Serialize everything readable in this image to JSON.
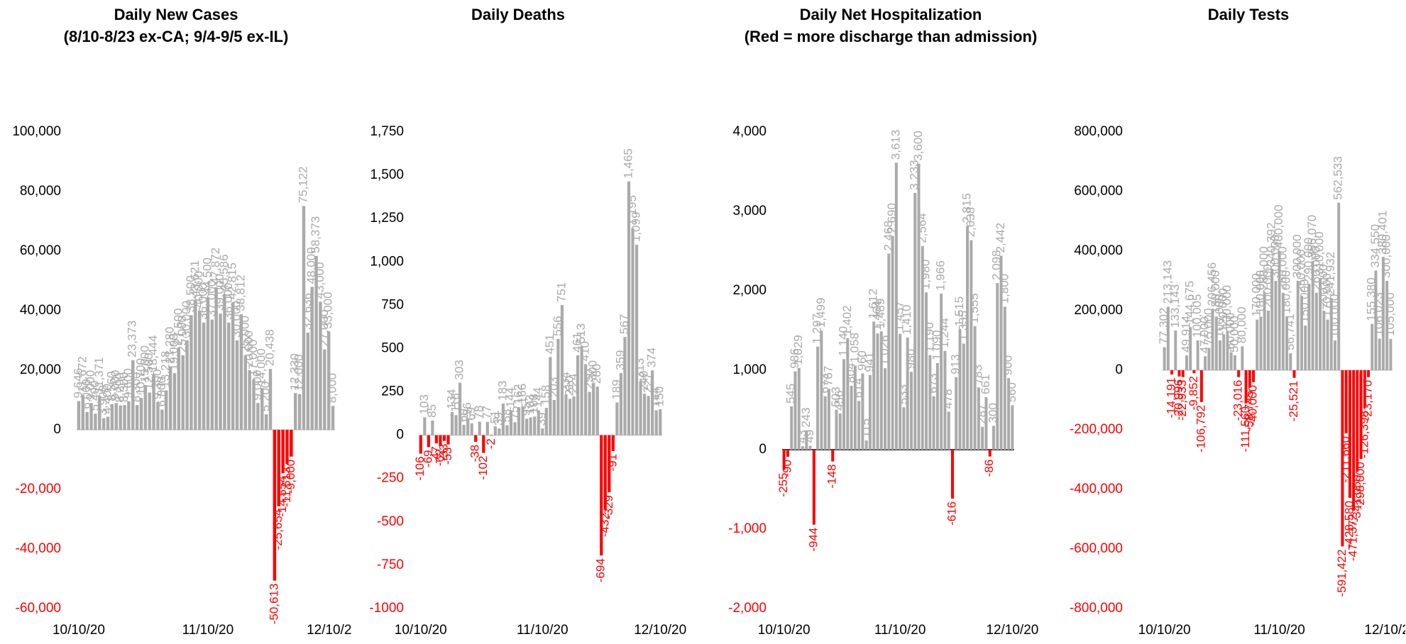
{
  "chart_data": [
    {
      "type": "bar",
      "title": "Daily New Cases",
      "subtitle": "(8/10-8/23 ex-CA; 9/4-9/5 ex-IL)",
      "categories": [
        "10/10/20",
        null,
        null,
        null,
        null,
        null,
        null,
        null,
        null,
        null,
        null,
        null,
        null,
        null,
        null,
        null,
        null,
        null,
        null,
        null,
        null,
        null,
        null,
        null,
        null,
        null,
        null,
        null,
        null,
        null,
        null,
        "11/10/20",
        null,
        null,
        null,
        null,
        null,
        null,
        null,
        null,
        null,
        null,
        null,
        null,
        null,
        null,
        null,
        null,
        null,
        null,
        null,
        null,
        null,
        null,
        null,
        null,
        null,
        null,
        null,
        null,
        null,
        "12/10/20"
      ],
      "values": [
        9646,
        11672,
        6000,
        9000,
        5400,
        11371,
        3900,
        4400,
        8560,
        9000,
        8200,
        8300,
        9600,
        23373,
        8300,
        10700,
        15000,
        12500,
        18444,
        9300,
        6800,
        13218,
        21280,
        19000,
        27500,
        25000,
        30000,
        38500,
        43621,
        40000,
        36000,
        44500,
        37000,
        47872,
        39000,
        45586,
        36000,
        42815,
        30000,
        38812,
        25000,
        20000,
        17000,
        9000,
        14000,
        5200,
        20438,
        -50613,
        -25654,
        -14554,
        -11513,
        -9000,
        12330,
        12000,
        75122,
        32636,
        48000,
        58373,
        43000,
        27000,
        33000,
        8000
      ],
      "value_labels": [
        "9,646",
        "11,672",
        "6,000",
        "9,000",
        "5,400",
        "11,371",
        "3,900",
        "4,400",
        "8,560",
        "9,000",
        "8,200",
        "8,300",
        "9,600",
        "23,373",
        "8,300",
        "10,700",
        "15,000",
        "12,500",
        "18,444",
        "9,300",
        "6,800",
        "13,218",
        "21,280",
        "19,000",
        "27,500",
        "25,000",
        "30,000",
        "38,500",
        "43,621",
        "40,000",
        "36,000",
        "44,500",
        "37,000",
        "47,872",
        "39,000",
        "45,586",
        "36,000",
        "42,815",
        "30,000",
        "38,812",
        "25,000",
        "20,000",
        "17,000",
        "9,000",
        "14,000",
        "5,200",
        "20,438",
        "-50,613",
        "-25,654",
        "-14,554",
        "-11,513",
        "-9,000",
        "12,330",
        "12,000",
        "75,122",
        "32,636",
        "48,000",
        "58,373",
        "43,000",
        "27,000",
        "33,000",
        "8,000"
      ],
      "color": "#aaaaaa",
      "negative_color": "#ff0000",
      "axis_color": "#cccccc",
      "ylim": [
        -60000,
        100000
      ],
      "yticks": [
        {
          "value": -60000,
          "label": "-60,000"
        },
        {
          "value": -40000,
          "label": "-40,000"
        },
        {
          "value": -20000,
          "label": "-20,000"
        },
        0,
        {
          "value": 20000,
          "label": "20,000"
        },
        {
          "value": 40000,
          "label": "40,000"
        },
        {
          "value": 60000,
          "label": "60,000"
        },
        {
          "value": 80000,
          "label": "80,000"
        },
        {
          "value": 100000,
          "label": "100,000"
        }
      ]
    },
    {
      "type": "bar",
      "title": "Daily Deaths",
      "categories": [
        "10/10/20",
        null,
        null,
        null,
        null,
        null,
        null,
        null,
        null,
        null,
        null,
        null,
        null,
        null,
        null,
        null,
        null,
        null,
        null,
        null,
        null,
        null,
        null,
        null,
        null,
        null,
        null,
        null,
        null,
        null,
        null,
        "11/10/20",
        null,
        null,
        null,
        null,
        null,
        null,
        null,
        null,
        null,
        null,
        null,
        null,
        null,
        null,
        null,
        null,
        null,
        null,
        null,
        null,
        null,
        null,
        null,
        null,
        null,
        null,
        null,
        null,
        null,
        "12/10/20"
      ],
      "values": [
        -106,
        103,
        -69,
        85,
        -47,
        -62,
        -33,
        -53,
        134,
        116,
        303,
        60,
        96,
        69,
        -38,
        78,
        -102,
        77,
        -2,
        51,
        39,
        183,
        58,
        144,
        75,
        162,
        166,
        95,
        103,
        108,
        144,
        39,
        158,
        451,
        203,
        556,
        751,
        234,
        210,
        224,
        461,
        513,
        410,
        250,
        300,
        280,
        -694,
        -432,
        -329,
        -91,
        189,
        359,
        567,
        1465,
        1195,
        1099,
        313,
        240,
        227,
        374,
        144,
        150
      ],
      "value_labels": [
        "-106",
        "103",
        "-69",
        "85",
        "-47",
        "-62",
        "-33",
        "-53",
        "134",
        "116",
        "303",
        "60",
        "96",
        "69",
        "-38",
        "78",
        "-102",
        "77",
        "-2",
        "51",
        "39",
        "183",
        "58",
        "144",
        "75",
        "162",
        "166",
        "95",
        "103",
        "108",
        "144",
        "39",
        "158",
        "451",
        "203",
        "556",
        "751",
        "234",
        "210",
        "224",
        "461",
        "513",
        "410",
        "250",
        "300",
        "280",
        "-694",
        "-432",
        "-329",
        "-91",
        "189",
        "359",
        "567",
        "1,465",
        "1,195",
        "1,099",
        "313",
        "240",
        "227",
        "374",
        "144",
        "150"
      ],
      "color": "#aaaaaa",
      "negative_color": "#ff0000",
      "axis_color": "#cccccc",
      "ylim": [
        -1000,
        1750
      ],
      "yticks": [
        -1000,
        -750,
        -500,
        -250,
        0,
        250,
        500,
        750,
        {
          "value": 1000,
          "label": "1,000"
        },
        {
          "value": 1250,
          "label": "1,250"
        },
        {
          "value": 1500,
          "label": "1,500"
        },
        {
          "value": 1750,
          "label": "1,750"
        }
      ]
    },
    {
      "type": "bar",
      "title": "Daily Net Hospitalization",
      "subtitle": "(Red = more discharge than admission)",
      "categories": [
        "10/10/20",
        null,
        null,
        null,
        null,
        null,
        null,
        null,
        null,
        null,
        null,
        null,
        null,
        null,
        null,
        null,
        null,
        null,
        null,
        null,
        null,
        null,
        null,
        null,
        null,
        null,
        null,
        null,
        null,
        null,
        null,
        "11/10/20",
        null,
        null,
        null,
        null,
        null,
        null,
        null,
        null,
        null,
        null,
        null,
        null,
        null,
        null,
        null,
        null,
        null,
        null,
        null,
        null,
        null,
        null,
        null,
        null,
        null,
        null,
        null,
        null,
        null,
        "12/10/20"
      ],
      "values": [
        -255,
        -90,
        545,
        986,
        1029,
        43,
        243,
        49,
        -944,
        1297,
        1499,
        673,
        767,
        -148,
        503,
        456,
        1140,
        1402,
        804,
        1058,
        614,
        960,
        115,
        941,
        1612,
        1464,
        1489,
        1026,
        2468,
        2690,
        3613,
        1457,
        533,
        1410,
        980,
        3233,
        3600,
        2564,
        1980,
        1190,
        673,
        1090,
        1966,
        1244,
        478,
        -616,
        913,
        1515,
        1335,
        2815,
        2638,
        1555,
        783,
        287,
        661,
        -86,
        300,
        2098,
        2442,
        1800,
        900,
        560
      ],
      "value_labels": [
        "-255",
        "-90",
        "545",
        "986",
        "1,029",
        "43",
        "243",
        "49",
        "-944",
        "1,297",
        "1,499",
        "673",
        "767",
        "-148",
        "503",
        "456",
        "1,140",
        "1,402",
        "804",
        "1,058",
        "614",
        "960",
        "115",
        "941",
        "1,612",
        "1,464",
        "1,489",
        "1,026",
        "2,468",
        "2,690",
        "3,613",
        "1,457",
        "533",
        "1,410",
        "980",
        "3,233",
        "3,600",
        "2,564",
        "1,980",
        "1,190",
        "673",
        "1,090",
        "1,966",
        "1,244",
        "478",
        "-616",
        "913",
        "1,515",
        "1,335",
        "2,815",
        "2,638",
        "1,555",
        "783",
        "287",
        "661",
        "-86",
        "300",
        "2,098",
        "2,442",
        "1,800",
        "900",
        "560"
      ],
      "color": "#aaaaaa",
      "negative_color": "#ff0000",
      "axis_color": "#000000",
      "ylim": [
        -2000,
        4000
      ],
      "yticks": [
        {
          "value": -2000,
          "label": "-2,000"
        },
        {
          "value": -1000,
          "label": "-1,000"
        },
        0,
        {
          "value": 1000,
          "label": "1,000"
        },
        {
          "value": 2000,
          "label": "2,000"
        },
        {
          "value": 3000,
          "label": "3,000"
        },
        {
          "value": 4000,
          "label": "4,000"
        }
      ]
    },
    {
      "type": "bar",
      "title": "Daily Tests",
      "categories": [
        "10/10/20",
        null,
        null,
        null,
        null,
        null,
        null,
        null,
        null,
        null,
        null,
        null,
        null,
        null,
        null,
        null,
        null,
        null,
        null,
        null,
        null,
        null,
        null,
        null,
        null,
        null,
        null,
        null,
        null,
        null,
        null,
        "11/10/20",
        null,
        null,
        null,
        null,
        null,
        null,
        null,
        null,
        null,
        null,
        null,
        null,
        null,
        null,
        null,
        null,
        null,
        null,
        null,
        null,
        null,
        null,
        null,
        null,
        null,
        null,
        null,
        null,
        null,
        "12/10/20"
      ],
      "values": [
        77302,
        213143,
        -14191,
        133143,
        -20996,
        -22933,
        49914,
        144675,
        -9852,
        100005,
        -106792,
        47000,
        75000,
        206456,
        180000,
        100000,
        120000,
        130000,
        60000,
        50000,
        -23016,
        80000,
        -111560,
        -58745,
        -40000,
        170000,
        180000,
        260000,
        200000,
        340392,
        300000,
        400000,
        260000,
        180000,
        56741,
        -25521,
        300000,
        250000,
        150000,
        290000,
        366070,
        260000,
        310000,
        200000,
        170000,
        241932,
        100000,
        562533,
        -591422,
        -211660,
        -428580,
        -471372,
        -341050,
        -298000,
        -126398,
        -23170,
        155380,
        334550,
        106023,
        380401,
        300000,
        105000
      ],
      "value_labels": [
        "77,302",
        "213,143",
        "-14,191",
        "133,143",
        "-20,996",
        "-22,933",
        "49,914",
        "144,675",
        "-9,852",
        "100,005",
        "-106,792",
        "47,000",
        "75,000",
        "206,456",
        "180,000",
        "100,000",
        "120,000",
        "130,000",
        "60,000",
        "50,000",
        "-23,016",
        "80,000",
        "-111,560",
        "-58,745",
        "-40,000",
        "170,000",
        "180,000",
        "260,000",
        "200,000",
        "340,392",
        "300,000",
        "400,000",
        "260,000",
        "180,000",
        "56,741",
        "-25,521",
        "300,000",
        "250,000",
        "150,000",
        "290,000",
        "366,070",
        "260,000",
        "310,000",
        "200,000",
        "170,000",
        "241,932",
        "100,000",
        "562,533",
        "-591,422",
        "-211,660",
        "-428,580",
        "-471,372",
        "-341,050",
        "-298,000",
        "-126,398",
        "-23,170",
        "155,380",
        "334,550",
        "106,023",
        "380,401",
        "300,000",
        "105,000"
      ],
      "color": "#aaaaaa",
      "negative_color": "#ff0000",
      "axis_color": "#cccccc",
      "ylim": [
        -800000,
        800000
      ],
      "yticks": [
        {
          "value": -800000,
          "label": "-800,000"
        },
        {
          "value": -600000,
          "label": "-600,000"
        },
        {
          "value": -400000,
          "label": "-400,000"
        },
        {
          "value": -200000,
          "label": "-200,000"
        },
        0,
        {
          "value": 200000,
          "label": "200,000"
        },
        {
          "value": 400000,
          "label": "400,000"
        },
        {
          "value": 600000,
          "label": "600,000"
        },
        {
          "value": 800000,
          "label": "800,000"
        }
      ]
    }
  ]
}
